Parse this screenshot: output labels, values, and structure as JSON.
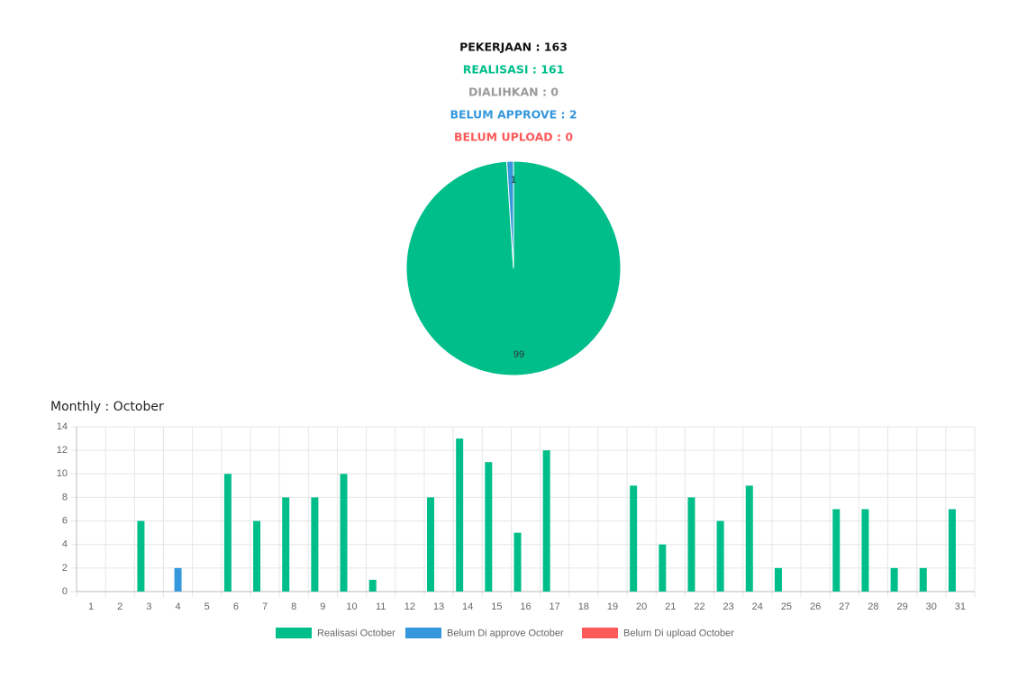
{
  "summary": [
    {
      "text": "PEKERJAAN : 163",
      "color": "#111111"
    },
    {
      "text": "REALISASI : 161",
      "color": "#00be8a"
    },
    {
      "text": "DIALIHKAN : 0",
      "color": "#9a9a9a"
    },
    {
      "text": "BELUM APPROVE : 2",
      "color": "#3598dc"
    },
    {
      "text": "BELUM UPLOAD : 0",
      "color": "#fe5a5a"
    }
  ],
  "chart_data": [
    {
      "type": "pie",
      "values": [
        99,
        1
      ],
      "colors": [
        "#00be8a",
        "#3598dc"
      ]
    },
    {
      "type": "bar",
      "title": "Monthly : October",
      "categories": [
        "1",
        "2",
        "3",
        "4",
        "5",
        "6",
        "7",
        "8",
        "9",
        "10",
        "11",
        "12",
        "13",
        "14",
        "15",
        "16",
        "17",
        "18",
        "19",
        "20",
        "21",
        "22",
        "23",
        "24",
        "25",
        "26",
        "27",
        "28",
        "29",
        "30",
        "31"
      ],
      "series": [
        {
          "name": "Realisasi October",
          "color": "#00be8a",
          "values": [
            0,
            0,
            6,
            0,
            0,
            10,
            6,
            8,
            8,
            10,
            1,
            0,
            8,
            13,
            11,
            5,
            12,
            0,
            0,
            9,
            4,
            8,
            6,
            9,
            2,
            0,
            7,
            7,
            2,
            2,
            7
          ]
        },
        {
          "name": "Belum Di approve October",
          "color": "#3598dc",
          "values": [
            0,
            0,
            0,
            2,
            0,
            0,
            0,
            0,
            0,
            0,
            0,
            0,
            0,
            0,
            0,
            0,
            0,
            0,
            0,
            0,
            0,
            0,
            0,
            0,
            0,
            0,
            0,
            0,
            0,
            0,
            0
          ]
        },
        {
          "name": "Belum Di upload October",
          "color": "#fe5a5a",
          "values": [
            0,
            0,
            0,
            0,
            0,
            0,
            0,
            0,
            0,
            0,
            0,
            0,
            0,
            0,
            0,
            0,
            0,
            0,
            0,
            0,
            0,
            0,
            0,
            0,
            0,
            0,
            0,
            0,
            0,
            0,
            0
          ]
        }
      ],
      "ylim": [
        0,
        14
      ],
      "yticks": [
        0,
        2,
        4,
        6,
        8,
        10,
        12,
        14
      ],
      "grid": true
    }
  ]
}
